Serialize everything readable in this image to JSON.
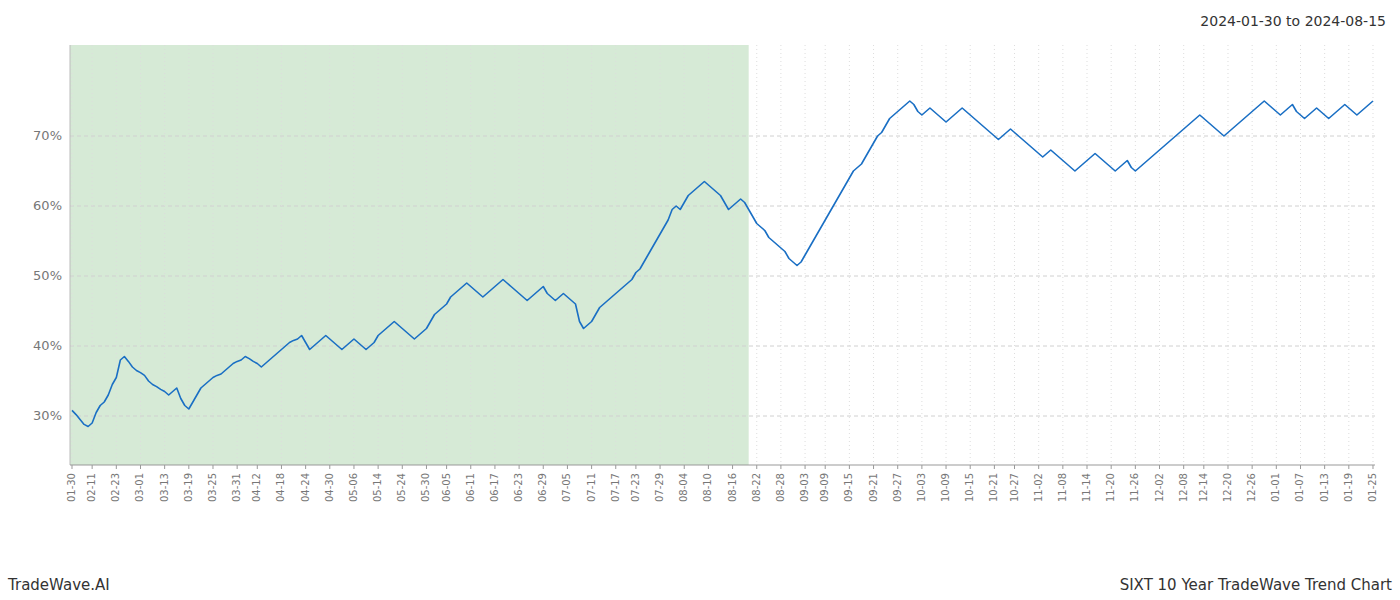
{
  "chart_data": {
    "type": "line",
    "title": "2024-01-30 to 2024-08-15",
    "annotations": [
      "TradeWave.AI",
      "SIXT 10 Year TradeWave Trend Chart"
    ],
    "color": "#1a6fc4",
    "shade_end": 168,
    "shade_color": "#d6ead6",
    "grid": true,
    "ylim": [
      23,
      83
    ],
    "yticks": [
      {
        "value": 30,
        "label": "30%"
      },
      {
        "value": 40,
        "label": "40%"
      },
      {
        "value": 50,
        "label": "50%"
      },
      {
        "value": 60,
        "label": "60%"
      },
      {
        "value": 70,
        "label": "70%"
      }
    ],
    "categories": [
      "01-30",
      null,
      null,
      null,
      null,
      "02-11",
      null,
      null,
      null,
      null,
      null,
      "02-23",
      null,
      null,
      null,
      null,
      null,
      "03-01",
      null,
      null,
      null,
      null,
      null,
      "03-13",
      null,
      null,
      null,
      null,
      null,
      "03-19",
      null,
      null,
      null,
      null,
      null,
      "03-25",
      null,
      null,
      null,
      null,
      null,
      "03-31",
      null,
      null,
      null,
      null,
      "04-12",
      null,
      null,
      null,
      null,
      null,
      "04-18",
      null,
      null,
      null,
      null,
      null,
      "04-24",
      null,
      null,
      null,
      null,
      null,
      "04-30",
      null,
      null,
      null,
      null,
      null,
      "05-06",
      null,
      null,
      null,
      null,
      null,
      "05-14",
      null,
      null,
      null,
      null,
      null,
      "05-24",
      null,
      null,
      null,
      null,
      null,
      "05-30",
      null,
      null,
      null,
      null,
      "06-05",
      null,
      null,
      null,
      null,
      null,
      "06-11",
      null,
      null,
      null,
      null,
      null,
      "06-17",
      null,
      null,
      null,
      null,
      null,
      "06-23",
      null,
      null,
      null,
      null,
      null,
      "06-29",
      null,
      null,
      null,
      null,
      null,
      "07-05",
      null,
      null,
      null,
      null,
      null,
      "07-11",
      null,
      null,
      null,
      null,
      null,
      "07-17",
      null,
      null,
      null,
      null,
      "07-23",
      null,
      null,
      null,
      null,
      null,
      "07-29",
      null,
      null,
      null,
      null,
      null,
      "08-04",
      null,
      null,
      null,
      null,
      null,
      "08-10",
      null,
      null,
      null,
      null,
      null,
      "08-16",
      null,
      null,
      null,
      null,
      null,
      "08-22",
      null,
      null,
      null,
      null,
      null,
      "08-28",
      null,
      null,
      null,
      null,
      null,
      "09-03",
      null,
      null,
      null,
      null,
      "09-09",
      null,
      null,
      null,
      null,
      null,
      "09-15",
      null,
      null,
      null,
      null,
      null,
      "09-21",
      null,
      null,
      null,
      null,
      null,
      "09-27",
      null,
      null,
      null,
      null,
      null,
      "10-03",
      null,
      null,
      null,
      null,
      null,
      "10-09",
      null,
      null,
      null,
      null,
      null,
      "10-15",
      null,
      null,
      null,
      null,
      null,
      "10-21",
      null,
      null,
      null,
      null,
      "10-27",
      null,
      null,
      null,
      null,
      null,
      "11-02",
      null,
      null,
      null,
      null,
      null,
      "11-08",
      null,
      null,
      null,
      null,
      null,
      "11-14",
      null,
      null,
      null,
      null,
      null,
      "11-20",
      null,
      null,
      null,
      null,
      null,
      "11-26",
      null,
      null,
      null,
      null,
      null,
      "12-02",
      null,
      null,
      null,
      null,
      null,
      "12-08",
      null,
      null,
      null,
      null,
      "12-14",
      null,
      null,
      null,
      null,
      null,
      "12-20",
      null,
      null,
      null,
      null,
      null,
      "12-26",
      null,
      null,
      null,
      null,
      null,
      "01-01",
      null,
      null,
      null,
      null,
      null,
      "01-07",
      null,
      null,
      null,
      null,
      null,
      "01-13",
      null,
      null,
      null,
      null,
      null,
      "01-19",
      null,
      null,
      null,
      null,
      null,
      "01-25"
    ],
    "values": [
      30.8,
      30.2,
      29.5,
      28.8,
      28.5,
      29.0,
      30.5,
      31.5,
      32.0,
      33.0,
      34.5,
      35.5,
      38.0,
      38.5,
      37.8,
      37.0,
      36.5,
      36.2,
      35.8,
      35.0,
      34.5,
      34.2,
      33.8,
      33.5,
      33.0,
      33.5,
      34.0,
      32.5,
      31.5,
      31.0,
      32.0,
      33.0,
      34.0,
      34.5,
      35.0,
      35.5,
      35.8,
      36.0,
      36.5,
      37.0,
      37.5,
      37.8,
      38.0,
      38.5,
      38.2,
      37.8,
      37.5,
      37.0,
      37.5,
      38.0,
      38.5,
      39.0,
      39.5,
      40.0,
      40.5,
      40.8,
      41.0,
      41.5,
      40.5,
      39.5,
      40.0,
      40.5,
      41.0,
      41.5,
      41.0,
      40.5,
      40.0,
      39.5,
      40.0,
      40.5,
      41.0,
      40.5,
      40.0,
      39.5,
      40.0,
      40.5,
      41.5,
      42.0,
      42.5,
      43.0,
      43.5,
      43.0,
      42.5,
      42.0,
      41.5,
      41.0,
      41.5,
      42.0,
      42.5,
      43.5,
      44.5,
      45.0,
      45.5,
      46.0,
      47.0,
      47.5,
      48.0,
      48.5,
      49.0,
      48.5,
      48.0,
      47.5,
      47.0,
      47.5,
      48.0,
      48.5,
      49.0,
      49.5,
      49.0,
      48.5,
      48.0,
      47.5,
      47.0,
      46.5,
      47.0,
      47.5,
      48.0,
      48.5,
      47.5,
      47.0,
      46.5,
      47.0,
      47.5,
      47.0,
      46.5,
      46.0,
      43.5,
      42.5,
      43.0,
      43.5,
      44.5,
      45.5,
      46.0,
      46.5,
      47.0,
      47.5,
      48.0,
      48.5,
      49.0,
      49.5,
      50.5,
      51.0,
      52.0,
      53.0,
      54.0,
      55.0,
      56.0,
      57.0,
      58.0,
      59.5,
      60.0,
      59.5,
      60.5,
      61.5,
      62.0,
      62.5,
      63.0,
      63.5,
      63.0,
      62.5,
      62.0,
      61.5,
      60.5,
      59.5,
      60.0,
      60.5,
      61.0,
      60.5,
      59.5,
      58.5,
      57.5,
      57.0,
      56.5,
      55.5,
      55.0,
      54.5,
      54.0,
      53.5,
      52.5,
      52.0,
      51.5,
      52.0,
      53.0,
      54.0,
      55.0,
      56.0,
      57.0,
      58.0,
      59.0,
      60.0,
      61.0,
      62.0,
      63.0,
      64.0,
      65.0,
      65.5,
      66.0,
      67.0,
      68.0,
      69.0,
      70.0,
      70.5,
      71.5,
      72.5,
      73.0,
      73.5,
      74.0,
      74.5,
      75.0,
      74.5,
      73.5,
      73.0,
      73.5,
      74.0,
      73.5,
      73.0,
      72.5,
      72.0,
      72.5,
      73.0,
      73.5,
      74.0,
      73.5,
      73.0,
      72.5,
      72.0,
      71.5,
      71.0,
      70.5,
      70.0,
      69.5,
      70.0,
      70.5,
      71.0,
      70.5,
      70.0,
      69.5,
      69.0,
      68.5,
      68.0,
      67.5,
      67.0,
      67.5,
      68.0,
      67.5,
      67.0,
      66.5,
      66.0,
      65.5,
      65.0,
      65.5,
      66.0,
      66.5,
      67.0,
      67.5,
      67.0,
      66.5,
      66.0,
      65.5,
      65.0,
      65.5,
      66.0,
      66.5,
      65.5,
      65.0,
      65.5,
      66.0,
      66.5,
      67.0,
      67.5,
      68.0,
      68.5,
      69.0,
      69.5,
      70.0,
      70.5,
      71.0,
      71.5,
      72.0,
      72.5,
      73.0,
      72.5,
      72.0,
      71.5,
      71.0,
      70.5,
      70.0,
      70.5,
      71.0,
      71.5,
      72.0,
      72.5,
      73.0,
      73.5,
      74.0,
      74.5,
      75.0,
      74.5,
      74.0,
      73.5,
      73.0,
      73.5,
      74.0,
      74.5,
      73.5,
      73.0,
      72.5,
      73.0,
      73.5,
      74.0,
      73.5,
      73.0,
      72.5,
      73.0,
      73.5,
      74.0,
      74.5,
      74.0,
      73.5,
      73.0,
      73.5,
      74.0,
      74.5,
      75.0
    ]
  }
}
